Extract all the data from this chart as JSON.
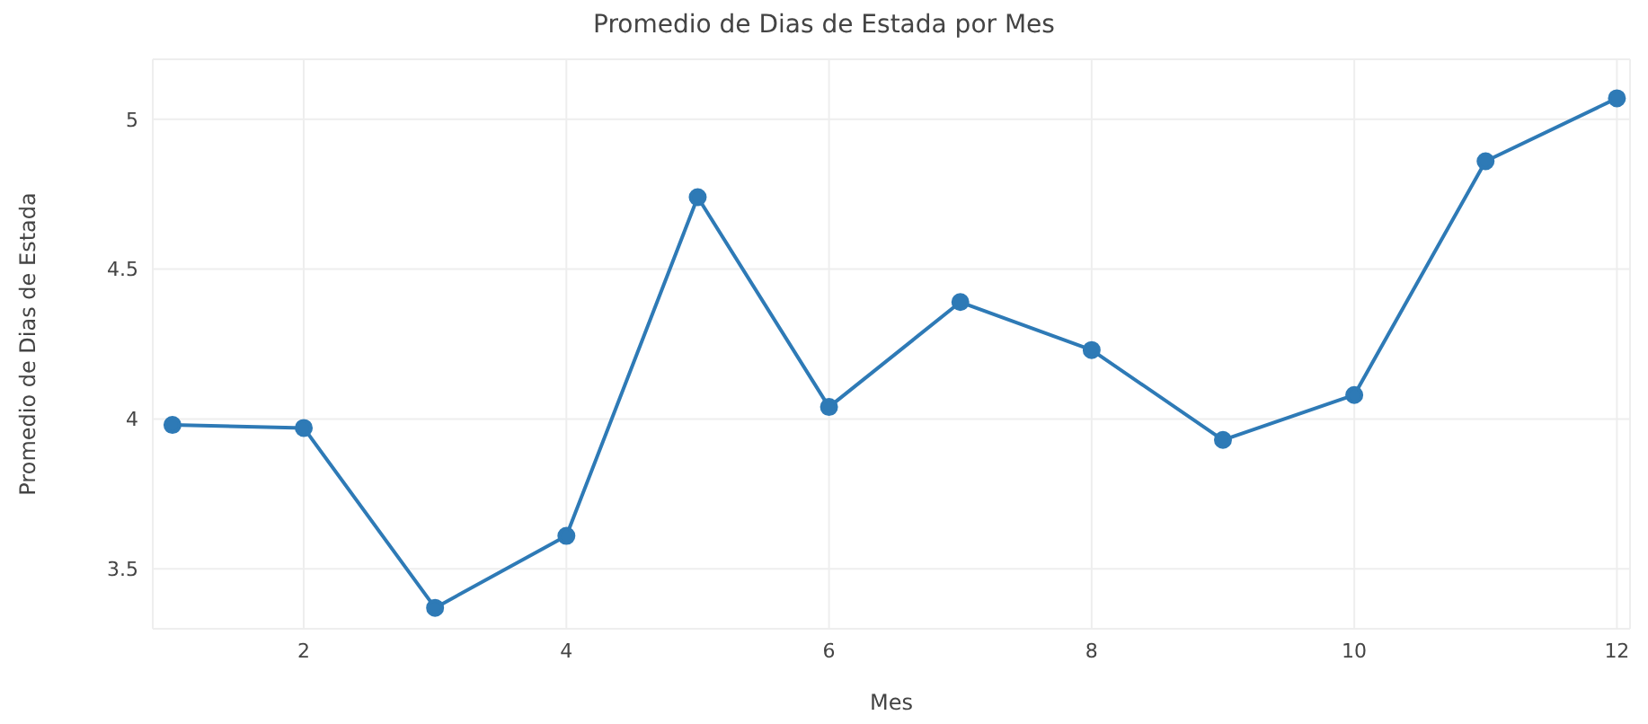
{
  "chart_data": {
    "type": "line",
    "title": "Promedio de Dias de Estada por Mes",
    "xlabel": "Mes",
    "ylabel": "Promedio de Dias de Estada",
    "x": [
      1,
      2,
      3,
      4,
      5,
      6,
      7,
      8,
      9,
      10,
      11,
      12
    ],
    "series": [
      {
        "color": "#2e7ab6",
        "values": [
          3.98,
          3.97,
          3.37,
          3.61,
          4.74,
          4.04,
          4.39,
          4.23,
          3.93,
          4.08,
          4.86,
          5.07
        ]
      }
    ],
    "xlim": [
      0.85,
      12.1
    ],
    "xticks": [
      2,
      4,
      6,
      8,
      10,
      12
    ],
    "ylim": [
      3.3,
      5.2
    ],
    "yticks": [
      {
        "value": 3.5,
        "label": "3.5"
      },
      4,
      {
        "value": 4.5,
        "label": "4.5"
      },
      5
    ],
    "grid": true,
    "marker": "circle",
    "line_style": "solid"
  }
}
